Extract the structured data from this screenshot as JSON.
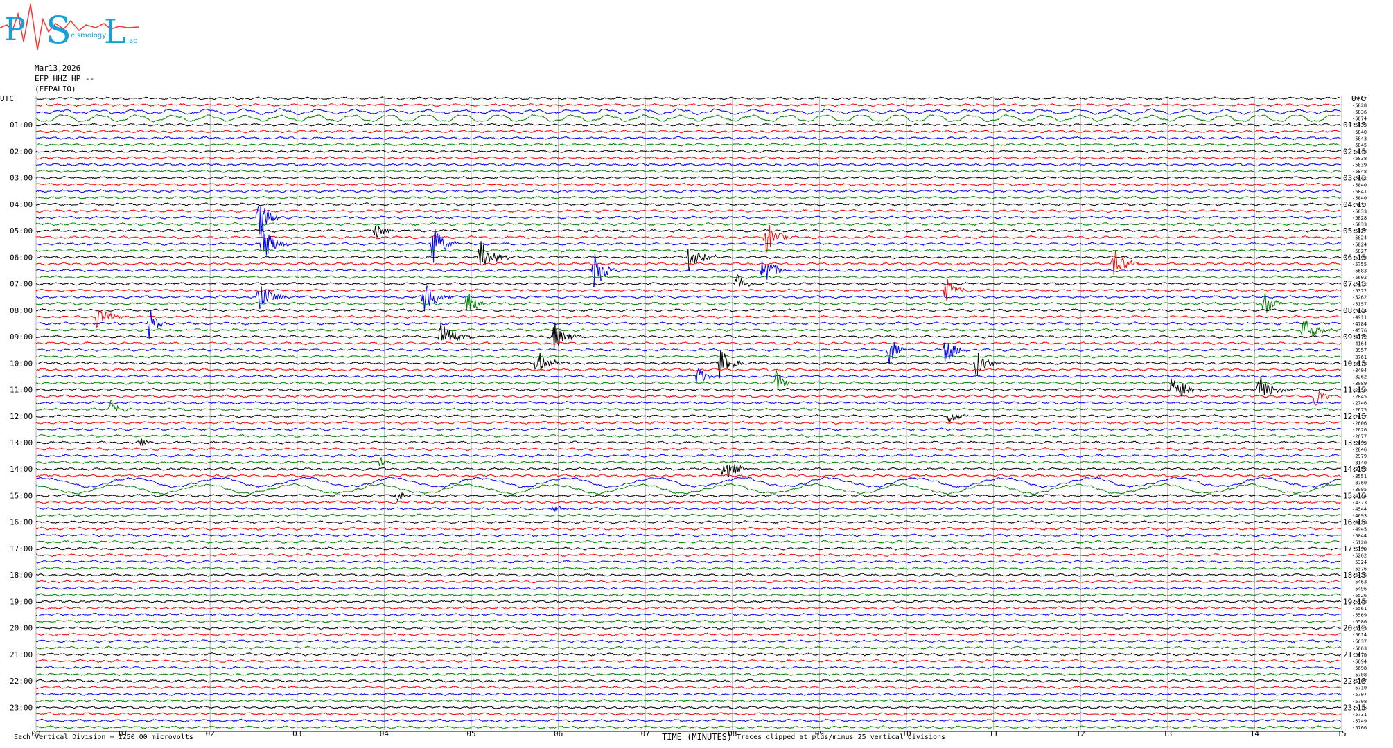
{
  "header": {
    "logo_letters": [
      "P",
      "S",
      "L"
    ],
    "logo_small_text": "eismology",
    "logo_small_text_2": "ab",
    "date": "Mar13,2026",
    "channel": "EFP HHZ HP --",
    "station": "(EFPALIO)"
  },
  "colors": {
    "trace_cycle": [
      "#000000",
      "#ff0000",
      "#0000ff",
      "#008000"
    ],
    "logo_red": "#ff3333",
    "logo_cyan": "#1aa0d8",
    "grid": "#b4b4b4"
  },
  "chart_data": {
    "type": "line",
    "title": "",
    "xlabel": "TIME (MINUTES)",
    "ylabel": "UTC",
    "xlim": [
      0,
      15
    ],
    "x_ticks": [
      "00",
      "01",
      "02",
      "03",
      "04",
      "05",
      "06",
      "07",
      "08",
      "09",
      "10",
      "11",
      "12",
      "13",
      "14",
      "15"
    ],
    "left_axis_title": "UTC",
    "right_axis_title": "UTC",
    "left_hour_labels": [
      "01:00",
      "02:00",
      "03:00",
      "04:00",
      "05:00",
      "06:00",
      "07:00",
      "08:00",
      "09:00",
      "10:00",
      "11:00",
      "12:00",
      "13:00",
      "14:00",
      "15:00",
      "16:00",
      "17:00",
      "18:00",
      "19:00",
      "20:00",
      "21:00",
      "22:00",
      "23:00"
    ],
    "right_hour_labels": [
      "01:15",
      "02:15",
      "03:15",
      "04:15",
      "05:15",
      "06:15",
      "07:15",
      "08:15",
      "09:15",
      "10:15",
      "11:15",
      "12:15",
      "13:15",
      "14:15",
      "15:15",
      "16:15",
      "17:15",
      "18:15",
      "19:15",
      "20:15",
      "21:15",
      "22:15",
      "23:15"
    ],
    "trace_count": 96,
    "trace_offsets": [
      "-5827",
      "-5828",
      "-5836",
      "-5874",
      "-5833",
      "-5840",
      "-5843",
      "-5845",
      "-5843",
      "-5838",
      "-5839",
      "-5848",
      "-5842",
      "-5840",
      "-5841",
      "-5840",
      "-5831",
      "-5833",
      "-5828",
      "-5833",
      "-5827",
      "-5824",
      "-5824",
      "-5827",
      "-5793",
      "-5755",
      "-5683",
      "-5602",
      "-5472",
      "-5372",
      "-5262",
      "-5157",
      "-5044",
      "-4911",
      "-4784",
      "-4576",
      "-4372",
      "-4164",
      "-3957",
      "-3761",
      "-3573",
      "-3404",
      "-3262",
      "-3089",
      "-2950",
      "-2845",
      "-2746",
      "-2675",
      "-2627",
      "-2606",
      "-2626",
      "-2677",
      "-2693",
      "-2846",
      "-2979",
      "-3140",
      "-3353",
      "-3551",
      "-3760",
      "-3995",
      "-4184",
      "-4373",
      "-4544",
      "-4693",
      "-4828",
      "-4945",
      "-5044",
      "-5120",
      "-5190",
      "-5262",
      "-5324",
      "-5376",
      "-5426",
      "-5463",
      "-5496",
      "-5526",
      "-5548",
      "-5561",
      "-5569",
      "-5580",
      "-5595",
      "-5614",
      "-5637",
      "-5663",
      "-5676",
      "-5694",
      "-5698",
      "-5708",
      "-5707",
      "-5710",
      "-5707",
      "-5708",
      "-5716",
      "-5731",
      "-5749",
      "-5766"
    ],
    "events": [
      {
        "trace": 18,
        "minute": 2.55,
        "amp": 3.2,
        "dur": 0.3
      },
      {
        "trace": 20,
        "minute": 3.9,
        "amp": 1.5,
        "dur": 0.25
      },
      {
        "trace": 21,
        "minute": 8.38,
        "amp": 3.0,
        "dur": 0.3
      },
      {
        "trace": 22,
        "minute": 2.6,
        "amp": 3.4,
        "dur": 0.3
      },
      {
        "trace": 22,
        "minute": 4.55,
        "amp": 3.6,
        "dur": 0.3
      },
      {
        "trace": 24,
        "minute": 5.1,
        "amp": 2.8,
        "dur": 0.35
      },
      {
        "trace": 24,
        "minute": 7.5,
        "amp": 2.6,
        "dur": 0.35
      },
      {
        "trace": 25,
        "minute": 12.38,
        "amp": 2.6,
        "dur": 0.3
      },
      {
        "trace": 26,
        "minute": 6.4,
        "amp": 3.6,
        "dur": 0.3
      },
      {
        "trace": 26,
        "minute": 8.35,
        "amp": 3.0,
        "dur": 0.3
      },
      {
        "trace": 28,
        "minute": 8.05,
        "amp": 1.8,
        "dur": 0.2
      },
      {
        "trace": 29,
        "minute": 10.45,
        "amp": 2.0,
        "dur": 0.25
      },
      {
        "trace": 30,
        "minute": 2.55,
        "amp": 2.6,
        "dur": 0.35
      },
      {
        "trace": 30,
        "minute": 4.45,
        "amp": 2.6,
        "dur": 0.35
      },
      {
        "trace": 31,
        "minute": 4.95,
        "amp": 2.4,
        "dur": 0.25
      },
      {
        "trace": 31,
        "minute": 14.1,
        "amp": 2.4,
        "dur": 0.25
      },
      {
        "trace": 33,
        "minute": 0.7,
        "amp": 1.8,
        "dur": 0.35
      },
      {
        "trace": 34,
        "minute": 1.3,
        "amp": 2.6,
        "dur": 0.2
      },
      {
        "trace": 35,
        "minute": 14.55,
        "amp": 2.2,
        "dur": 0.4
      },
      {
        "trace": 36,
        "minute": 4.65,
        "amp": 2.8,
        "dur": 0.35
      },
      {
        "trace": 36,
        "minute": 5.95,
        "amp": 2.4,
        "dur": 0.35
      },
      {
        "trace": 38,
        "minute": 9.8,
        "amp": 3.0,
        "dur": 0.2
      },
      {
        "trace": 38,
        "minute": 10.45,
        "amp": 2.6,
        "dur": 0.25
      },
      {
        "trace": 40,
        "minute": 5.75,
        "amp": 2.4,
        "dur": 0.3
      },
      {
        "trace": 40,
        "minute": 7.85,
        "amp": 2.4,
        "dur": 0.3
      },
      {
        "trace": 40,
        "minute": 10.8,
        "amp": 2.2,
        "dur": 0.3
      },
      {
        "trace": 42,
        "minute": 7.6,
        "amp": 2.2,
        "dur": 0.2
      },
      {
        "trace": 43,
        "minute": 8.5,
        "amp": 2.2,
        "dur": 0.2
      },
      {
        "trace": 44,
        "minute": 13.05,
        "amp": 2.6,
        "dur": 0.4
      },
      {
        "trace": 44,
        "minute": 14.05,
        "amp": 2.2,
        "dur": 0.4
      },
      {
        "trace": 45,
        "minute": 14.7,
        "amp": 2.2,
        "dur": 0.2
      },
      {
        "trace": 47,
        "minute": 0.85,
        "amp": 2.0,
        "dur": 0.2
      },
      {
        "trace": 48,
        "minute": 10.5,
        "amp": 1.4,
        "dur": 0.2
      },
      {
        "trace": 52,
        "minute": 1.2,
        "amp": 1.0,
        "dur": 0.15
      },
      {
        "trace": 55,
        "minute": 3.95,
        "amp": 1.2,
        "dur": 0.15
      },
      {
        "trace": 56,
        "minute": 7.9,
        "amp": 2.0,
        "dur": 0.35
      },
      {
        "trace": 60,
        "minute": 4.15,
        "amp": 1.2,
        "dur": 0.15
      },
      {
        "trace": 62,
        "minute": 5.95,
        "amp": 0.9,
        "dur": 0.15
      }
    ]
  },
  "footer": {
    "left_note": "Each Vertical Division = 1250.00 microvolts",
    "center_title": "TIME (MINUTES)",
    "center_note": "Traces clipped at plus/minus 25 vertical divisions"
  }
}
